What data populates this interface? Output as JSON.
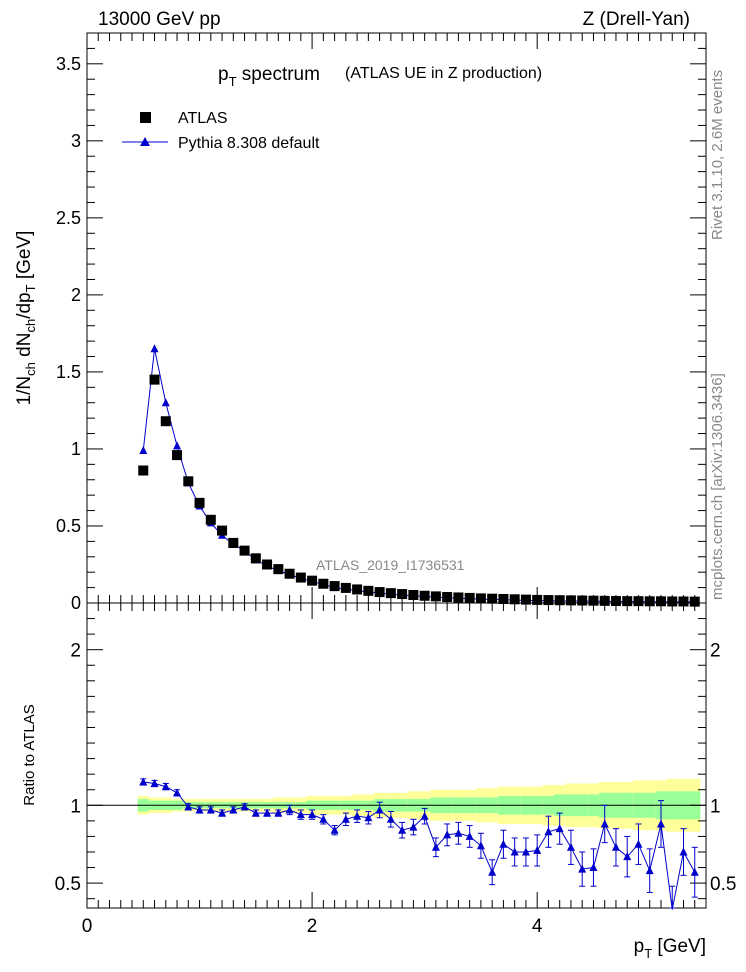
{
  "header": {
    "left": "13000 GeV pp",
    "right": "Z (Drell-Yan)"
  },
  "side_labels": {
    "rivet": "Rivet 3.1.10,  2.6M events",
    "mcplots": "mcplots.cern.ch [arXiv:1306.3436]"
  },
  "colors": {
    "data": "#000000",
    "mc": "#0000cc",
    "band_inner": "#99ff99",
    "band_outer": "#ffff99"
  },
  "chart_data": [
    {
      "type": "scatter",
      "title_main": "p",
      "title_sub": "T",
      "title_rest": " spectrum",
      "title_paren": "(ATLAS UE in Z production)",
      "ylabel": "1/N_ch dN_ch/dp_T [GeV]",
      "xlim": [
        0,
        5.5
      ],
      "ylim": [
        0,
        3.7
      ],
      "yticks": [
        0,
        0.5,
        1,
        1.5,
        2,
        2.5,
        3,
        3.5
      ],
      "ytick_labels": [
        "0",
        "0.5",
        "1",
        "1.5",
        "2",
        "2.5",
        "3",
        "3.5"
      ],
      "analysis_label": "ATLAS_2019_I1736531",
      "legend": [
        "ATLAS",
        "Pythia 8.308 default"
      ],
      "legend_position": "top-left",
      "x": [
        0.5,
        0.6,
        0.7,
        0.8,
        0.9,
        1.0,
        1.1,
        1.2,
        1.3,
        1.4,
        1.5,
        1.6,
        1.7,
        1.8,
        1.9,
        2.0,
        2.1,
        2.2,
        2.3,
        2.4,
        2.5,
        2.6,
        2.7,
        2.8,
        2.9,
        3.0,
        3.1,
        3.2,
        3.3,
        3.4,
        3.5,
        3.6,
        3.7,
        3.8,
        3.9,
        4.0,
        4.1,
        4.2,
        4.3,
        4.4,
        4.5,
        4.6,
        4.7,
        4.8,
        4.9,
        5.0,
        5.1,
        5.2,
        5.3,
        5.4
      ],
      "series": [
        {
          "name": "ATLAS",
          "values": [
            0.86,
            1.45,
            1.18,
            0.96,
            0.79,
            0.65,
            0.54,
            0.47,
            0.39,
            0.34,
            0.29,
            0.25,
            0.22,
            0.19,
            0.165,
            0.145,
            0.125,
            0.11,
            0.098,
            0.088,
            0.079,
            0.071,
            0.064,
            0.058,
            0.052,
            0.047,
            0.043,
            0.039,
            0.036,
            0.033,
            0.03,
            0.028,
            0.026,
            0.024,
            0.022,
            0.02,
            0.019,
            0.018,
            0.017,
            0.016,
            0.015,
            0.014,
            0.013,
            0.012,
            0.012,
            0.011,
            0.011,
            0.01,
            0.01,
            0.009
          ]
        },
        {
          "name": "Pythia 8.308 default",
          "values": [
            0.99,
            1.65,
            1.3,
            1.02,
            0.78,
            0.63,
            0.52,
            0.44,
            0.38,
            0.34,
            0.28,
            0.24,
            0.21,
            0.185,
            0.16,
            0.14,
            0.12,
            0.1,
            0.09,
            0.08,
            0.072,
            0.065,
            0.058,
            0.052,
            0.046,
            0.042,
            0.038,
            0.034,
            0.031,
            0.028,
            0.025,
            0.023,
            0.021,
            0.019,
            0.017,
            0.016,
            0.015,
            0.014,
            0.013,
            0.012,
            0.011,
            0.011,
            0.01,
            0.009,
            0.009,
            0.008,
            0.008,
            0.007,
            0.007,
            0.006
          ]
        }
      ]
    },
    {
      "type": "line",
      "ylabel": "Ratio to ATLAS",
      "xlabel_main": "p",
      "xlabel_sub": "T",
      "xlabel_rest": " [GeV]",
      "xlim": [
        0,
        5.5
      ],
      "ylim": [
        0.34,
        2.3
      ],
      "yticks": [
        0.5,
        1,
        2
      ],
      "ytick_labels": [
        "0.5",
        "1",
        "2"
      ],
      "xticks": [
        0,
        2,
        4
      ],
      "xtick_labels": [
        "0",
        "2",
        "4"
      ],
      "x": [
        0.5,
        0.6,
        0.7,
        0.8,
        0.9,
        1.0,
        1.1,
        1.2,
        1.3,
        1.4,
        1.5,
        1.6,
        1.7,
        1.8,
        1.9,
        2.0,
        2.1,
        2.2,
        2.3,
        2.4,
        2.5,
        2.6,
        2.7,
        2.8,
        2.9,
        3.0,
        3.1,
        3.2,
        3.3,
        3.4,
        3.5,
        3.6,
        3.7,
        3.8,
        3.9,
        4.0,
        4.1,
        4.2,
        4.3,
        4.4,
        4.5,
        4.6,
        4.7,
        4.8,
        4.9,
        5.0,
        5.1,
        5.2,
        5.3,
        5.4
      ],
      "band_inner": [
        0.04,
        0.03,
        0.03,
        0.03,
        0.02,
        0.02,
        0.02,
        0.02,
        0.02,
        0.02,
        0.02,
        0.02,
        0.02,
        0.02,
        0.02,
        0.03,
        0.03,
        0.03,
        0.03,
        0.03,
        0.03,
        0.04,
        0.04,
        0.04,
        0.04,
        0.04,
        0.05,
        0.05,
        0.05,
        0.05,
        0.05,
        0.05,
        0.06,
        0.06,
        0.06,
        0.06,
        0.06,
        0.07,
        0.07,
        0.07,
        0.07,
        0.08,
        0.08,
        0.08,
        0.08,
        0.08,
        0.09,
        0.09,
        0.09,
        0.09
      ],
      "band_outer": [
        0.06,
        0.05,
        0.05,
        0.04,
        0.04,
        0.04,
        0.04,
        0.04,
        0.04,
        0.04,
        0.04,
        0.04,
        0.05,
        0.05,
        0.05,
        0.06,
        0.06,
        0.06,
        0.06,
        0.07,
        0.07,
        0.08,
        0.08,
        0.08,
        0.09,
        0.09,
        0.1,
        0.1,
        0.1,
        0.1,
        0.11,
        0.11,
        0.12,
        0.12,
        0.12,
        0.12,
        0.13,
        0.13,
        0.14,
        0.14,
        0.14,
        0.15,
        0.15,
        0.15,
        0.16,
        0.16,
        0.16,
        0.17,
        0.17,
        0.17
      ],
      "series": [
        {
          "name": "Pythia 8.308 default",
          "values": [
            1.15,
            1.14,
            1.12,
            1.08,
            0.99,
            0.97,
            0.97,
            0.95,
            0.97,
            0.99,
            0.95,
            0.95,
            0.95,
            0.97,
            0.94,
            0.94,
            0.91,
            0.84,
            0.91,
            0.93,
            0.92,
            0.97,
            0.91,
            0.84,
            0.86,
            0.93,
            0.73,
            0.81,
            0.82,
            0.8,
            0.74,
            0.57,
            0.75,
            0.7,
            0.7,
            0.71,
            0.83,
            0.85,
            0.73,
            0.59,
            0.6,
            0.88,
            0.73,
            0.67,
            0.75,
            0.58,
            0.88,
            0.33,
            0.7,
            0.57
          ],
          "errors": [
            0.02,
            0.02,
            0.02,
            0.02,
            0.02,
            0.02,
            0.02,
            0.02,
            0.02,
            0.02,
            0.02,
            0.02,
            0.02,
            0.03,
            0.03,
            0.03,
            0.03,
            0.03,
            0.04,
            0.04,
            0.04,
            0.05,
            0.05,
            0.05,
            0.05,
            0.05,
            0.06,
            0.07,
            0.07,
            0.07,
            0.08,
            0.08,
            0.09,
            0.09,
            0.09,
            0.1,
            0.1,
            0.1,
            0.11,
            0.11,
            0.12,
            0.12,
            0.12,
            0.13,
            0.13,
            0.14,
            0.15,
            0.15,
            0.15,
            0.16
          ]
        }
      ]
    }
  ]
}
